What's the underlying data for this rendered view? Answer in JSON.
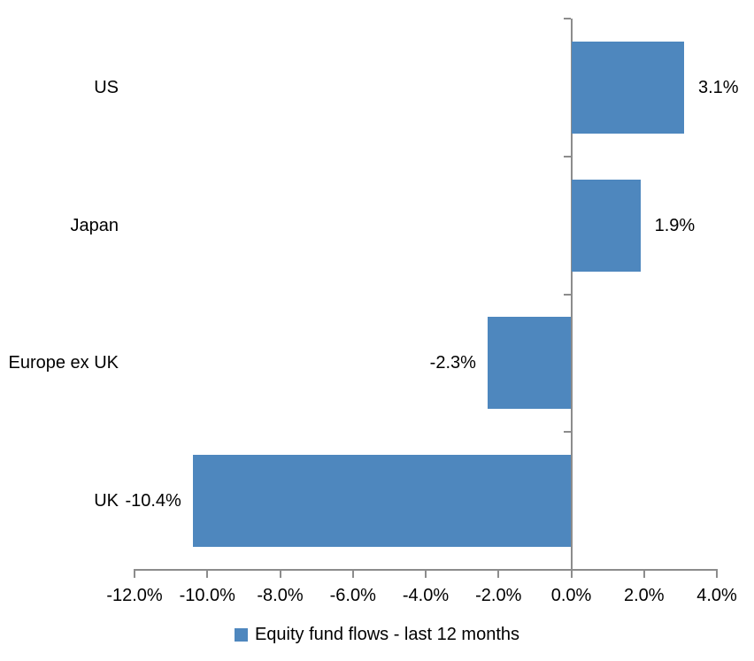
{
  "chart_data": {
    "type": "bar",
    "orientation": "horizontal",
    "title": "",
    "categories": [
      "US",
      "Japan",
      "Europe ex UK",
      "UK"
    ],
    "series": [
      {
        "name": "Equity fund flows - last 12 months",
        "values": [
          3.1,
          1.9,
          -2.3,
          -10.4
        ],
        "labels": [
          "3.1%",
          "1.9%",
          "-2.3%",
          "-10.4%"
        ]
      }
    ],
    "xlim": [
      -12,
      4
    ],
    "xtick_interval": 2,
    "xtick_labels": [
      "-12.0%",
      "-10.0%",
      "-8.0%",
      "-6.0%",
      "-4.0%",
      "-2.0%",
      "0.0%",
      "2.0%",
      "4.0%"
    ],
    "grid": false,
    "legend": "Equity fund flows - last 12 months",
    "legend_position": "bottom",
    "colors": {
      "bar": "#4E87BE",
      "axis": "#8C8C8C",
      "text": "#000000",
      "background": "#FFFFFF"
    }
  }
}
